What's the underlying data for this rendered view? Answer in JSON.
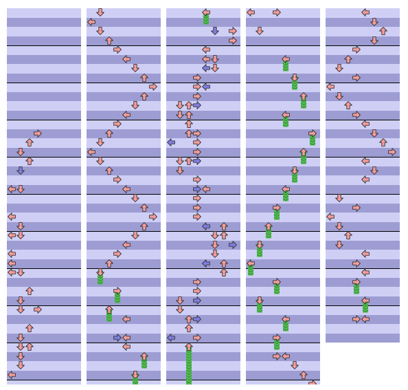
{
  "colors": {
    "band_light": "#cfcff5",
    "band_dark": "#9d9dd3",
    "measure_line": "#000000",
    "note_red": "#f59c9c",
    "note_blue": "#7f7fe6",
    "hold_green": "#55bb55",
    "hold_stripe": "#2f8f2f",
    "note_outline": "#333333"
  },
  "icons": {
    "left": "left-arrow-icon",
    "down": "down-arrow-icon",
    "up": "up-arrow-icon",
    "right": "right-arrow-icon"
  },
  "chart": {
    "columns": [
      {
        "beats": 32,
        "notes": [
          {
            "beat": 13,
            "lane": 3,
            "kind": "red"
          },
          {
            "beat": 14,
            "lane": 2,
            "kind": "red"
          },
          {
            "beat": 15,
            "lane": 1,
            "kind": "red"
          },
          {
            "beat": 16,
            "lane": 2,
            "kind": "red"
          },
          {
            "beat": 17,
            "lane": 1,
            "kind": "blue"
          },
          {
            "beat": 19,
            "lane": 0,
            "kind": "red"
          },
          {
            "beat": 19,
            "lane": 1,
            "kind": "red"
          },
          {
            "beat": 22,
            "lane": 0,
            "kind": "red"
          },
          {
            "beat": 23,
            "lane": 1,
            "kind": "red"
          },
          {
            "beat": 24,
            "lane": 0,
            "kind": "red"
          },
          {
            "beat": 24,
            "lane": 1,
            "kind": "red"
          },
          {
            "beat": 26,
            "lane": 0,
            "kind": "red"
          },
          {
            "beat": 27,
            "lane": 0,
            "kind": "red"
          },
          {
            "beat": 28,
            "lane": 0,
            "kind": "red"
          },
          {
            "beat": 28,
            "lane": 1,
            "kind": "red"
          },
          {
            "beat": 30,
            "lane": 2,
            "kind": "red"
          },
          {
            "beat": 31,
            "lane": 1,
            "kind": "red"
          },
          {
            "beat": 32,
            "lane": 1,
            "kind": "red"
          },
          {
            "beat": 32,
            "lane": 3,
            "kind": "red"
          },
          {
            "beat": 34,
            "lane": 2,
            "kind": "red"
          },
          {
            "beat": 35,
            "lane": 1,
            "kind": "red"
          },
          {
            "beat": 36,
            "lane": 1,
            "kind": "red"
          },
          {
            "beat": 36,
            "lane": 2,
            "kind": "red"
          },
          {
            "beat": 37,
            "lane": 1,
            "kind": "red"
          },
          {
            "beat": 38,
            "lane": 1,
            "kind": "red"
          },
          {
            "beat": 39,
            "lane": 0,
            "kind": "red"
          }
        ]
      },
      {
        "beats": 32,
        "notes": [
          {
            "beat": 0,
            "lane": 1,
            "kind": "red"
          },
          {
            "beat": 1,
            "lane": 0,
            "kind": "red"
          },
          {
            "beat": 2,
            "lane": 1,
            "kind": "red"
          },
          {
            "beat": 3,
            "lane": 2,
            "kind": "red"
          },
          {
            "beat": 4,
            "lane": 3,
            "kind": "red"
          },
          {
            "beat": 5,
            "lane": 4,
            "kind": "red"
          },
          {
            "beat": 6,
            "lane": 5,
            "kind": "red"
          },
          {
            "beat": 7,
            "lane": 6,
            "kind": "red"
          },
          {
            "beat": 8,
            "lane": 7,
            "kind": "red"
          },
          {
            "beat": 9,
            "lane": 6,
            "kind": "red"
          },
          {
            "beat": 10,
            "lane": 5,
            "kind": "red"
          },
          {
            "beat": 11,
            "lane": 4,
            "kind": "red"
          },
          {
            "beat": 12,
            "lane": 3,
            "kind": "red"
          },
          {
            "beat": 13,
            "lane": 2,
            "kind": "red"
          },
          {
            "beat": 14,
            "lane": 1,
            "kind": "red"
          },
          {
            "beat": 15,
            "lane": 0,
            "kind": "red"
          },
          {
            "beat": 16,
            "lane": 1,
            "kind": "red"
          },
          {
            "beat": 17,
            "lane": 2,
            "kind": "red"
          },
          {
            "beat": 18,
            "lane": 3,
            "kind": "red"
          },
          {
            "beat": 19,
            "lane": 4,
            "kind": "red"
          },
          {
            "beat": 20,
            "lane": 5,
            "kind": "red"
          },
          {
            "beat": 21,
            "lane": 6,
            "kind": "red"
          },
          {
            "beat": 22,
            "lane": 7,
            "kind": "red"
          },
          {
            "beat": 23,
            "lane": 6,
            "kind": "red"
          },
          {
            "beat": 24,
            "lane": 5,
            "kind": "red"
          },
          {
            "beat": 25,
            "lane": 4,
            "kind": "red"
          },
          {
            "beat": 26,
            "lane": 3,
            "kind": "red"
          },
          {
            "beat": 27,
            "lane": 2,
            "kind": "red"
          },
          {
            "beat": 28,
            "lane": 1,
            "kind": "hold",
            "length": 1
          },
          {
            "beat": 30,
            "lane": 3,
            "kind": "hold",
            "length": 1
          },
          {
            "beat": 32,
            "lane": 2,
            "kind": "hold",
            "length": 1
          },
          {
            "beat": 33,
            "lane": 4,
            "kind": "red"
          },
          {
            "beat": 35,
            "lane": 3,
            "kind": "blue"
          },
          {
            "beat": 35,
            "lane": 4,
            "kind": "red"
          },
          {
            "beat": 36,
            "lane": 4,
            "kind": "red"
          },
          {
            "beat": 37,
            "lane": 6,
            "kind": "hold",
            "length": 1
          },
          {
            "beat": 39,
            "lane": 5,
            "kind": "hold",
            "length": 1
          }
        ]
      },
      {
        "beats": 32,
        "notes": [
          {
            "beat": 0,
            "lane": 4,
            "kind": "hold",
            "length": 1
          },
          {
            "beat": 2,
            "lane": 5,
            "kind": "blue"
          },
          {
            "beat": 2,
            "lane": 7,
            "kind": "red"
          },
          {
            "beat": 3,
            "lane": 7,
            "kind": "red"
          },
          {
            "beat": 4,
            "lane": 4,
            "kind": "red"
          },
          {
            "beat": 5,
            "lane": 4,
            "kind": "red"
          },
          {
            "beat": 5,
            "lane": 5,
            "kind": "red"
          },
          {
            "beat": 6,
            "lane": 4,
            "kind": "blue"
          },
          {
            "beat": 6,
            "lane": 5,
            "kind": "red"
          },
          {
            "beat": 7,
            "lane": 3,
            "kind": "red"
          },
          {
            "beat": 8,
            "lane": 3,
            "kind": "red"
          },
          {
            "beat": 8,
            "lane": 4,
            "kind": "blue"
          },
          {
            "beat": 9,
            "lane": 3,
            "kind": "red"
          },
          {
            "beat": 10,
            "lane": 1,
            "kind": "red"
          },
          {
            "beat": 10,
            "lane": 2,
            "kind": "red"
          },
          {
            "beat": 10,
            "lane": 3,
            "kind": "blue"
          },
          {
            "beat": 11,
            "lane": 1,
            "kind": "red"
          },
          {
            "beat": 11,
            "lane": 2,
            "kind": "red"
          },
          {
            "beat": 12,
            "lane": 2,
            "kind": "red"
          },
          {
            "beat": 13,
            "lane": 2,
            "kind": "red"
          },
          {
            "beat": 13,
            "lane": 3,
            "kind": "red"
          },
          {
            "beat": 14,
            "lane": 0,
            "kind": "blue"
          },
          {
            "beat": 14,
            "lane": 3,
            "kind": "red"
          },
          {
            "beat": 15,
            "lane": 3,
            "kind": "red"
          },
          {
            "beat": 16,
            "lane": 1,
            "kind": "red"
          },
          {
            "beat": 16,
            "lane": 2,
            "kind": "red"
          },
          {
            "beat": 16,
            "lane": 3,
            "kind": "blue"
          },
          {
            "beat": 17,
            "lane": 1,
            "kind": "red"
          },
          {
            "beat": 18,
            "lane": 3,
            "kind": "red"
          },
          {
            "beat": 19,
            "lane": 3,
            "kind": "blue"
          },
          {
            "beat": 19,
            "lane": 4,
            "kind": "red"
          },
          {
            "beat": 20,
            "lane": 3,
            "kind": "red"
          },
          {
            "beat": 21,
            "lane": 3,
            "kind": "red"
          },
          {
            "beat": 22,
            "lane": 3,
            "kind": "red"
          },
          {
            "beat": 23,
            "lane": 4,
            "kind": "blue"
          },
          {
            "beat": 23,
            "lane": 6,
            "kind": "red"
          },
          {
            "beat": 24,
            "lane": 5,
            "kind": "red"
          },
          {
            "beat": 24,
            "lane": 6,
            "kind": "red"
          },
          {
            "beat": 25,
            "lane": 5,
            "kind": "red"
          },
          {
            "beat": 25,
            "lane": 7,
            "kind": "blue"
          },
          {
            "beat": 26,
            "lane": 5,
            "kind": "red"
          },
          {
            "beat": 27,
            "lane": 4,
            "kind": "blue"
          },
          {
            "beat": 27,
            "lane": 6,
            "kind": "red"
          },
          {
            "beat": 28,
            "lane": 6,
            "kind": "red"
          },
          {
            "beat": 29,
            "lane": 3,
            "kind": "red"
          },
          {
            "beat": 30,
            "lane": 3,
            "kind": "red"
          },
          {
            "beat": 31,
            "lane": 1,
            "kind": "red"
          },
          {
            "beat": 31,
            "lane": 3,
            "kind": "blue"
          },
          {
            "beat": 32,
            "lane": 1,
            "kind": "red"
          },
          {
            "beat": 33,
            "lane": 2,
            "kind": "red"
          },
          {
            "beat": 33,
            "lane": 3,
            "kind": "blue"
          },
          {
            "beat": 34,
            "lane": 2,
            "kind": "red"
          },
          {
            "beat": 35,
            "lane": 0,
            "kind": "blue"
          },
          {
            "beat": 35,
            "lane": 3,
            "kind": "red"
          },
          {
            "beat": 36,
            "lane": 2,
            "kind": "hold",
            "length": 4
          }
        ]
      },
      {
        "beats": 32,
        "notes": [
          {
            "beat": 0,
            "lane": 0,
            "kind": "red"
          },
          {
            "beat": 0,
            "lane": 3,
            "kind": "red"
          },
          {
            "beat": 2,
            "lane": 1,
            "kind": "red"
          },
          {
            "beat": 5,
            "lane": 4,
            "kind": "hold",
            "length": 1
          },
          {
            "beat": 7,
            "lane": 5,
            "kind": "hold",
            "length": 1
          },
          {
            "beat": 9,
            "lane": 6,
            "kind": "hold",
            "length": 1
          },
          {
            "beat": 11,
            "lane": 4,
            "kind": "hold",
            "length": 1
          },
          {
            "beat": 13,
            "lane": 7,
            "kind": "hold",
            "length": 1
          },
          {
            "beat": 15,
            "lane": 6,
            "kind": "hold",
            "length": 1
          },
          {
            "beat": 17,
            "lane": 5,
            "kind": "hold",
            "length": 1
          },
          {
            "beat": 19,
            "lane": 4,
            "kind": "hold",
            "length": 1
          },
          {
            "beat": 21,
            "lane": 3,
            "kind": "hold",
            "length": 1
          },
          {
            "beat": 23,
            "lane": 2,
            "kind": "hold",
            "length": 1
          },
          {
            "beat": 25,
            "lane": 1,
            "kind": "hold",
            "length": 1
          },
          {
            "beat": 27,
            "lane": 0,
            "kind": "hold",
            "length": 1
          },
          {
            "beat": 29,
            "lane": 3,
            "kind": "hold",
            "length": 1
          },
          {
            "beat": 31,
            "lane": 1,
            "kind": "hold",
            "length": 1
          },
          {
            "beat": 33,
            "lane": 4,
            "kind": "hold",
            "length": 1
          },
          {
            "beat": 35,
            "lane": 3,
            "kind": "hold",
            "length": 1
          },
          {
            "beat": 37,
            "lane": 3,
            "kind": "red"
          },
          {
            "beat": 37,
            "lane": 4,
            "kind": "red"
          },
          {
            "beat": 38,
            "lane": 5,
            "kind": "red"
          },
          {
            "beat": 39,
            "lane": 6,
            "kind": "red"
          },
          {
            "beat": 40,
            "lane": 7,
            "kind": "red"
          }
        ]
      },
      {
        "beats": 32,
        "notes": [
          {
            "beat": 0,
            "lane": 4,
            "kind": "red"
          },
          {
            "beat": 1,
            "lane": 5,
            "kind": "red"
          },
          {
            "beat": 2,
            "lane": 6,
            "kind": "red"
          },
          {
            "beat": 3,
            "lane": 5,
            "kind": "red"
          },
          {
            "beat": 4,
            "lane": 3,
            "kind": "red"
          },
          {
            "beat": 5,
            "lane": 2,
            "kind": "red"
          },
          {
            "beat": 6,
            "lane": 1,
            "kind": "red"
          },
          {
            "beat": 7,
            "lane": 3,
            "kind": "red"
          },
          {
            "beat": 8,
            "lane": 0,
            "kind": "red"
          },
          {
            "beat": 9,
            "lane": 1,
            "kind": "red"
          },
          {
            "beat": 10,
            "lane": 2,
            "kind": "red"
          },
          {
            "beat": 11,
            "lane": 3,
            "kind": "red"
          },
          {
            "beat": 12,
            "lane": 4,
            "kind": "red"
          },
          {
            "beat": 13,
            "lane": 5,
            "kind": "red"
          },
          {
            "beat": 14,
            "lane": 6,
            "kind": "red"
          },
          {
            "beat": 15,
            "lane": 7,
            "kind": "red"
          },
          {
            "beat": 16,
            "lane": 4,
            "kind": "red"
          },
          {
            "beat": 17,
            "lane": 5,
            "kind": "red"
          },
          {
            "beat": 18,
            "lane": 4,
            "kind": "red"
          },
          {
            "beat": 20,
            "lane": 1,
            "kind": "red"
          },
          {
            "beat": 21,
            "lane": 3,
            "kind": "red"
          },
          {
            "beat": 22,
            "lane": 0,
            "kind": "red"
          },
          {
            "beat": 23,
            "lane": 1,
            "kind": "red"
          },
          {
            "beat": 24,
            "lane": 2,
            "kind": "red"
          },
          {
            "beat": 25,
            "lane": 1,
            "kind": "red"
          },
          {
            "beat": 26,
            "lane": 4,
            "kind": "red"
          },
          {
            "beat": 27,
            "lane": 3,
            "kind": "red"
          },
          {
            "beat": 28,
            "lane": 4,
            "kind": "red"
          },
          {
            "beat": 29,
            "lane": 3,
            "kind": "hold",
            "length": 1
          },
          {
            "beat": 31,
            "lane": 4,
            "kind": "hold",
            "length": 1
          },
          {
            "beat": 33,
            "lane": 3,
            "kind": "red"
          },
          {
            "beat": 33,
            "lane": 4,
            "kind": "red"
          }
        ]
      }
    ]
  }
}
